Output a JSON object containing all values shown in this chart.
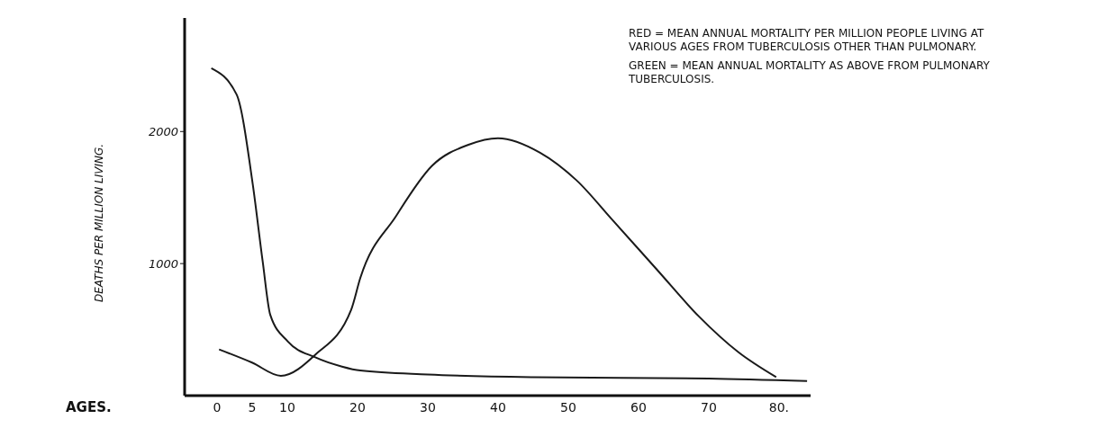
{
  "chart_data": {
    "type": "line",
    "xlabel": "AGES.",
    "ylabel": "DEATHS PER MILLION LIVING.",
    "xlim": [
      -4.6,
      84.5
    ],
    "xticks": [
      0,
      5,
      10,
      20,
      30,
      40,
      50,
      60,
      70,
      {
        "value": 80,
        "label": "80."
      }
    ],
    "ylim": [
      0,
      2860
    ],
    "yticks": [
      1000,
      2000
    ],
    "marker": "none",
    "line_style": "solid",
    "series": [
      {
        "color": "#1a1a1a",
        "x": [
          -0.8,
          2.8,
          5.1,
          6.5,
          7.6,
          10.1,
          14,
          17.8,
          20.4,
          30,
          45,
          70,
          84
        ],
        "values": [
          2480,
          2280,
          1600,
          1020,
          610,
          410,
          290,
          220,
          190,
          160,
          140,
          130,
          110
        ]
      },
      {
        "color": "#1a1a1a",
        "x": [
          0.3,
          5,
          9.1,
          14,
          19.1,
          20.4,
          25.5,
          30.6,
          35.8,
          40,
          46,
          51.2,
          56.3,
          62.7,
          68.6,
          74.2,
          79.6
        ],
        "values": [
          350,
          250,
          150,
          310,
          650,
          890,
          1360,
          1740,
          1900,
          1950,
          1840,
          1630,
          1330,
          950,
          600,
          330,
          140
        ]
      }
    ],
    "annotations": [
      "RED = MEAN ANNUAL MORTALITY PER MILLION PEOPLE LIVING AT VARIOUS AGES FROM TUBERCULOSIS OTHER THAN PULMONARY.",
      "GREEN = MEAN ANNUAL MORTALITY AS ABOVE FROM PULMONARY TUBERCULOSIS."
    ]
  }
}
